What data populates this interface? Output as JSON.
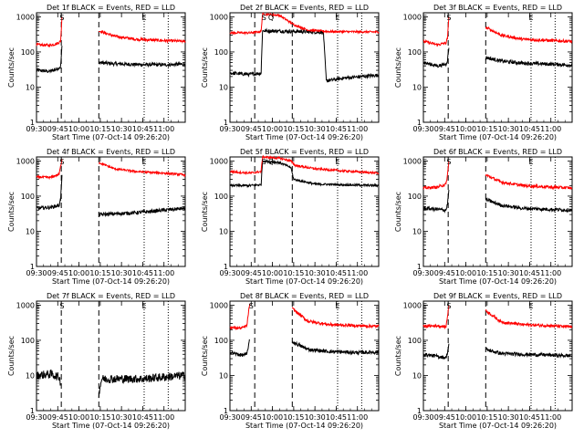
{
  "grid_layout": {
    "rows": 3,
    "cols": 3
  },
  "common": {
    "xlabel": "Start Time (07-Oct-14 09:26:20)",
    "ylabel": "Counts/sec",
    "x_ticks": [
      "09:30",
      "09:45",
      "10:00",
      "10:15",
      "10:30",
      "10:45",
      "11:00"
    ],
    "x_tick_minutes": [
      570,
      585,
      600,
      615,
      630,
      645,
      660
    ],
    "xlim_minutes": [
      570,
      675
    ],
    "y_ticks": [
      "1",
      "10",
      "100",
      "1000"
    ],
    "y_tick_values": [
      1,
      10,
      100,
      1000
    ],
    "ylim": [
      1,
      1300
    ],
    "y_scale": "log",
    "dashed_lines_minutes": [
      587.5,
      614
    ],
    "dotted_lines_minutes": [
      646,
      663
    ],
    "colors": {
      "events": "#000000",
      "lld": "#ff0000"
    }
  },
  "chart_data": [
    {
      "type": "line",
      "title": "Det 1f BLACK = Events, RED = LLD",
      "markers": [
        {
          "letter": "E",
          "minute": 571
        },
        {
          "letter": "S",
          "minute": 588
        },
        {
          "letter": "E",
          "minute": 646
        }
      ],
      "series": [
        {
          "name": "Events",
          "noise": 0.05,
          "segments": [
            [
              [
                570,
                30
              ],
              [
                579,
                28
              ],
              [
                584,
                32
              ],
              [
                587,
                38
              ],
              [
                588,
                150
              ]
            ],
            [
              [
                614,
                50
              ],
              [
                625,
                46
              ],
              [
                640,
                44
              ],
              [
                660,
                43
              ],
              [
                675,
                45
              ]
            ]
          ]
        },
        {
          "name": "LLD",
          "noise": 0.04,
          "segments": [
            [
              [
                570,
                160
              ],
              [
                579,
                155
              ],
              [
                584,
                170
              ],
              [
                587,
                200
              ],
              [
                588,
                1000
              ]
            ],
            [
              [
                614,
                400
              ],
              [
                625,
                280
              ],
              [
                640,
                230
              ],
              [
                660,
                210
              ],
              [
                675,
                200
              ]
            ]
          ]
        }
      ]
    },
    {
      "type": "line",
      "title": "Det 2f BLACK = Events, RED = LLD",
      "markers": [
        {
          "letter": "S",
          "minute": 594
        },
        {
          "letter": "Q",
          "minute": 599
        },
        {
          "letter": "E",
          "minute": 646
        }
      ],
      "series": [
        {
          "name": "Events",
          "noise": 0.05,
          "segments": [
            [
              [
                570,
                25
              ],
              [
                584,
                23
              ],
              [
                592,
                25
              ],
              [
                593,
                400
              ],
              [
                620,
                380
              ],
              [
                636,
                360
              ],
              [
                638,
                15
              ],
              [
                650,
                18
              ],
              [
                675,
                22
              ]
            ]
          ]
        },
        {
          "name": "LLD",
          "noise": 0.03,
          "segments": [
            [
              [
                570,
                350
              ],
              [
                584,
                350
              ],
              [
                592,
                380
              ],
              [
                593,
                1200
              ],
              [
                605,
                1100
              ],
              [
                615,
                600
              ],
              [
                625,
                420
              ],
              [
                640,
                380
              ],
              [
                675,
                370
              ]
            ]
          ]
        }
      ]
    },
    {
      "type": "line",
      "title": "Det 3f BLACK = Events, RED = LLD",
      "markers": [
        {
          "letter": "E",
          "minute": 571
        },
        {
          "letter": "S",
          "minute": 588
        },
        {
          "letter": "E",
          "minute": 646
        }
      ],
      "series": [
        {
          "name": "Events",
          "noise": 0.05,
          "segments": [
            [
              [
                570,
                50
              ],
              [
                580,
                40
              ],
              [
                586,
                45
              ],
              [
                587,
                60
              ],
              [
                588,
                130
              ]
            ],
            [
              [
                614,
                70
              ],
              [
                625,
                55
              ],
              [
                640,
                48
              ],
              [
                660,
                45
              ],
              [
                675,
                42
              ]
            ]
          ]
        },
        {
          "name": "LLD",
          "noise": 0.04,
          "segments": [
            [
              [
                570,
                200
              ],
              [
                580,
                160
              ],
              [
                586,
                180
              ],
              [
                587,
                250
              ],
              [
                588,
                1000
              ]
            ],
            [
              [
                614,
                500
              ],
              [
                625,
                300
              ],
              [
                640,
                230
              ],
              [
                660,
                210
              ],
              [
                675,
                200
              ]
            ]
          ]
        }
      ]
    },
    {
      "type": "line",
      "title": "Det 4f BLACK = Events, RED = LLD",
      "markers": [
        {
          "letter": "E",
          "minute": 571
        },
        {
          "letter": "S",
          "minute": 588
        },
        {
          "letter": "E",
          "minute": 646
        }
      ],
      "series": [
        {
          "name": "Events",
          "noise": 0.05,
          "segments": [
            [
              [
                570,
                45
              ],
              [
                580,
                48
              ],
              [
                586,
                55
              ],
              [
                587,
                80
              ],
              [
                588,
                400
              ]
            ],
            [
              [
                614,
                30
              ],
              [
                630,
                32
              ],
              [
                645,
                35
              ],
              [
                660,
                40
              ],
              [
                675,
                45
              ]
            ]
          ]
        },
        {
          "name": "LLD",
          "noise": 0.03,
          "segments": [
            [
              [
                570,
                350
              ],
              [
                580,
                340
              ],
              [
                586,
                420
              ],
              [
                587,
                700
              ],
              [
                588,
                1100
              ]
            ],
            [
              [
                614,
                900
              ],
              [
                625,
                600
              ],
              [
                640,
                500
              ],
              [
                660,
                450
              ],
              [
                675,
                400
              ]
            ]
          ]
        }
      ]
    },
    {
      "type": "line",
      "title": "Det 5f BLACK = Events, RED = LLD",
      "markers": [
        {
          "letter": "S",
          "minute": 594
        },
        {
          "letter": "Q",
          "minute": 599
        },
        {
          "letter": "E",
          "minute": 646
        }
      ],
      "series": [
        {
          "name": "Events",
          "noise": 0.03,
          "segments": [
            [
              [
                570,
                200
              ],
              [
                584,
                200
              ],
              [
                592,
                210
              ],
              [
                593,
                1000
              ],
              [
                605,
                900
              ],
              [
                613,
                650
              ],
              [
                615,
                300
              ],
              [
                630,
                220
              ],
              [
                650,
                210
              ],
              [
                675,
                200
              ]
            ]
          ]
        },
        {
          "name": "LLD",
          "noise": 0.03,
          "segments": [
            [
              [
                570,
                500
              ],
              [
                584,
                450
              ],
              [
                592,
                500
              ],
              [
                593,
                1300
              ],
              [
                605,
                1200
              ],
              [
                613,
                1000
              ],
              [
                616,
                750
              ],
              [
                630,
                600
              ],
              [
                650,
                520
              ],
              [
                675,
                450
              ]
            ]
          ]
        }
      ]
    },
    {
      "type": "line",
      "title": "Det 6f BLACK = Events, RED = LLD",
      "markers": [
        {
          "letter": "E",
          "minute": 571
        },
        {
          "letter": "S",
          "minute": 588
        },
        {
          "letter": "E",
          "minute": 646
        }
      ],
      "series": [
        {
          "name": "Events",
          "noise": 0.05,
          "segments": [
            [
              [
                570,
                45
              ],
              [
                580,
                42
              ],
              [
                586,
                40
              ],
              [
                587,
                60
              ],
              [
                588,
                150
              ]
            ],
            [
              [
                614,
                80
              ],
              [
                625,
                55
              ],
              [
                640,
                45
              ],
              [
                660,
                42
              ],
              [
                675,
                40
              ]
            ]
          ]
        },
        {
          "name": "LLD",
          "noise": 0.04,
          "segments": [
            [
              [
                570,
                170
              ],
              [
                580,
                180
              ],
              [
                586,
                220
              ],
              [
                587,
                400
              ],
              [
                588,
                1000
              ]
            ],
            [
              [
                614,
                400
              ],
              [
                625,
                250
              ],
              [
                640,
                200
              ],
              [
                660,
                180
              ],
              [
                675,
                170
              ]
            ]
          ]
        }
      ]
    },
    {
      "type": "line",
      "title": "Det 7f BLACK = Events, RED = LLD",
      "markers": [
        {
          "letter": "E",
          "minute": 571
        },
        {
          "letter": "S",
          "minute": 588
        },
        {
          "letter": "E",
          "minute": 646
        }
      ],
      "series": [
        {
          "name": "Events",
          "noise": 0.12,
          "segments": [
            [
              [
                570,
                10
              ],
              [
                580,
                11
              ],
              [
                586,
                9
              ],
              [
                587,
                6
              ]
            ],
            [
              [
                614,
                3
              ],
              [
                616,
                8
              ],
              [
                630,
                8
              ],
              [
                645,
                8
              ],
              [
                660,
                9
              ],
              [
                675,
                10
              ]
            ]
          ]
        }
      ]
    },
    {
      "type": "line",
      "title": "Det 8f BLACK = Events, RED = LLD",
      "markers": [
        {
          "letter": "S",
          "minute": 585
        },
        {
          "letter": "E",
          "minute": 646
        }
      ],
      "series": [
        {
          "name": "Events",
          "noise": 0.05,
          "segments": [
            [
              [
                570,
                45
              ],
              [
                578,
                38
              ],
              [
                582,
                40
              ],
              [
                583,
                70
              ],
              [
                584,
                100
              ]
            ],
            [
              [
                614,
                90
              ],
              [
                625,
                55
              ],
              [
                640,
                48
              ],
              [
                660,
                45
              ],
              [
                675,
                46
              ]
            ]
          ]
        },
        {
          "name": "LLD",
          "noise": 0.04,
          "segments": [
            [
              [
                570,
                230
              ],
              [
                578,
                220
              ],
              [
                582,
                260
              ],
              [
                583,
                600
              ],
              [
                584,
                1100
              ]
            ],
            [
              [
                614,
                800
              ],
              [
                625,
                350
              ],
              [
                640,
                280
              ],
              [
                660,
                260
              ],
              [
                675,
                250
              ]
            ]
          ]
        }
      ]
    },
    {
      "type": "line",
      "title": "Det 9f BLACK = Events, RED = LLD",
      "markers": [
        {
          "letter": "E",
          "minute": 571
        },
        {
          "letter": "S",
          "minute": 588
        },
        {
          "letter": "E",
          "minute": 646
        }
      ],
      "series": [
        {
          "name": "Events",
          "noise": 0.05,
          "segments": [
            [
              [
                570,
                40
              ],
              [
                580,
                35
              ],
              [
                586,
                32
              ],
              [
                587,
                45
              ],
              [
                588,
                80
              ]
            ],
            [
              [
                614,
                55
              ],
              [
                625,
                42
              ],
              [
                640,
                40
              ],
              [
                660,
                38
              ],
              [
                675,
                36
              ]
            ]
          ]
        },
        {
          "name": "LLD",
          "noise": 0.04,
          "segments": [
            [
              [
                570,
                250
              ],
              [
                580,
                260
              ],
              [
                586,
                240
              ],
              [
                587,
                500
              ],
              [
                588,
                1000
              ]
            ],
            [
              [
                614,
                700
              ],
              [
                625,
                330
              ],
              [
                640,
                280
              ],
              [
                660,
                260
              ],
              [
                675,
                240
              ]
            ]
          ]
        }
      ]
    }
  ]
}
